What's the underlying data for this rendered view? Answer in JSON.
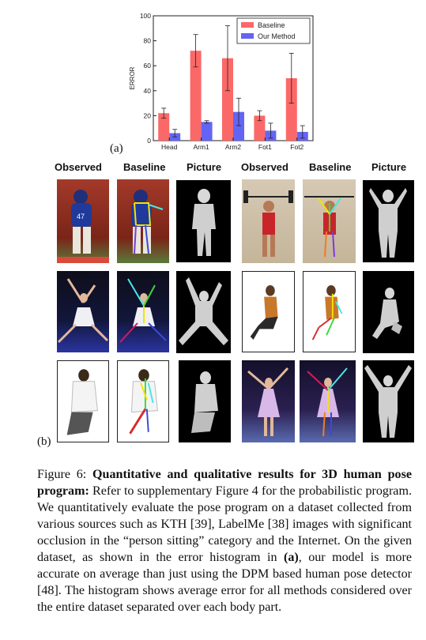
{
  "chart_data": {
    "type": "bar",
    "categories": [
      "Head",
      "Arm1",
      "Arm2",
      "Fot1",
      "Fot2"
    ],
    "ylabel": "ERROR",
    "ylim": [
      0,
      100
    ],
    "yticks": [
      0,
      20,
      40,
      60,
      80,
      100
    ],
    "legend_position": "top-right",
    "series": [
      {
        "name": "Baseline",
        "color": "#fb6868",
        "values": [
          22,
          72,
          66,
          20,
          50
        ],
        "errors": [
          4,
          13,
          26,
          4,
          20
        ]
      },
      {
        "name": "Our Method",
        "color": "#6464f4",
        "values": [
          6,
          15,
          23,
          8,
          7
        ],
        "errors": [
          3,
          1,
          11,
          6,
          5
        ]
      }
    ]
  },
  "panel_a_label": "(a)",
  "panel_b_label": "(b)",
  "column_headers": [
    "Observed",
    "Baseline",
    "Picture",
    "Observed",
    "Baseline",
    "Picture"
  ],
  "caption": {
    "figure_label": "Figure 6:",
    "bold_title": "Quantitative and qualitative results for 3D human pose program:",
    "text_1": " Refer to supplementary Figure 4 for the probabilistic program. We quantitatively evaluate the pose program on a dataset collected from various sources such as KTH [39], LabelMe [38] images with significant occlusion in the “person sitting” category and the Internet. On the given dataset, as shown in the error histogram in ",
    "bold_a": "(a)",
    "text_2": ", our model is more accurate on average than just using the DPM based human pose detector [48]. The histogram shows average error for all methods considered over the entire dataset separated over each body part."
  }
}
